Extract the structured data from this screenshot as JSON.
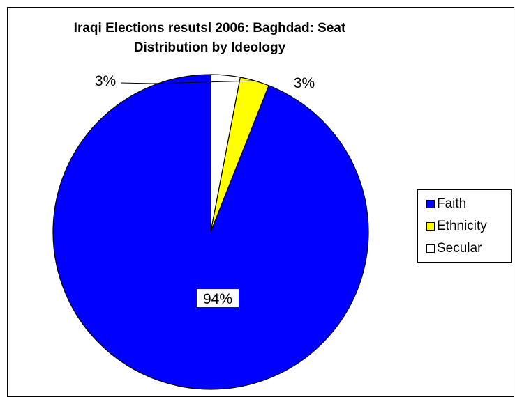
{
  "chart_data": {
    "type": "pie",
    "title": "Iraqi Elections resutsl 2006: Baghdad: Seat Distribution by Ideology",
    "title_lines": [
      "Iraqi Elections resutsl 2006: Baghdad: Seat",
      "Distribution by Ideology"
    ],
    "categories": [
      "Faith",
      "Ethnicity",
      "Secular"
    ],
    "values": [
      94,
      3,
      3
    ],
    "labels": [
      "94%",
      "3%",
      "3%"
    ],
    "colors": [
      "#0000ff",
      "#ffff00",
      "#ffffff"
    ],
    "legend": {
      "position": "right",
      "entries": [
        "Faith",
        "Ethnicity",
        "Secular"
      ]
    },
    "grid": false
  }
}
